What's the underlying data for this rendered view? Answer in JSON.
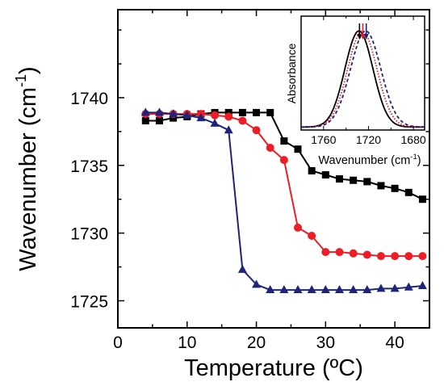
{
  "chart_data": [
    {
      "type": "line",
      "title": "",
      "xlabel": "Temperature (ºC)",
      "ylabel": "Wavenumber (cm",
      "ylabel_sup": "-1",
      "ylabel_close": ")",
      "xlim": [
        0,
        45
      ],
      "ylim": [
        1723,
        1746.5
      ],
      "xticks": [
        0,
        10,
        20,
        30,
        40
      ],
      "yticks": [
        1725,
        1730,
        1735,
        1740
      ],
      "grid": false,
      "legend": "none",
      "series": [
        {
          "color": "#000000",
          "marker": "square",
          "x": [
            4,
            6,
            8,
            10,
            12,
            14,
            16,
            18,
            20,
            22,
            24,
            26,
            28,
            30,
            32,
            34,
            36,
            38,
            40,
            42,
            44
          ],
          "y": [
            1738.3,
            1738.3,
            1738.5,
            1738.6,
            1738.8,
            1738.9,
            1738.9,
            1738.9,
            1738.9,
            1738.9,
            1736.8,
            1736.2,
            1734.6,
            1734.3,
            1734.0,
            1733.9,
            1733.8,
            1733.5,
            1733.3,
            1733.0,
            1732.5
          ]
        },
        {
          "color": "#ee1c24",
          "marker": "circle",
          "x": [
            4,
            6,
            8,
            10,
            12,
            14,
            16,
            18,
            20,
            22,
            24,
            26,
            28,
            30,
            32,
            34,
            36,
            38,
            40,
            42,
            44
          ],
          "y": [
            1738.8,
            1738.8,
            1738.8,
            1738.8,
            1738.8,
            1738.7,
            1738.6,
            1738.3,
            1737.6,
            1736.3,
            1735.4,
            1730.4,
            1729.8,
            1728.6,
            1728.6,
            1728.5,
            1728.4,
            1728.3,
            1728.3,
            1728.3,
            1728.3
          ]
        },
        {
          "color": "#1e2479",
          "marker": "triangle",
          "x": [
            4,
            6,
            8,
            10,
            12,
            14,
            16,
            18,
            20,
            22,
            24,
            26,
            28,
            30,
            32,
            34,
            36,
            38,
            40,
            42,
            44
          ],
          "y": [
            1738.9,
            1738.9,
            1738.8,
            1738.7,
            1738.5,
            1738.1,
            1737.6,
            1727.3,
            1726.2,
            1725.8,
            1725.8,
            1725.8,
            1725.8,
            1725.8,
            1725.8,
            1725.8,
            1725.8,
            1725.9,
            1725.9,
            1726.0,
            1726.1
          ]
        }
      ]
    },
    {
      "type": "line",
      "title": "",
      "xlabel": "Wavenumber (cm",
      "xlabel_sup": "-1",
      "xlabel_close": ")",
      "ylabel": "Absorbance",
      "xlim": [
        1780,
        1670
      ],
      "ylim": [
        0,
        1.15
      ],
      "xticks": [
        1760,
        1720,
        1680
      ],
      "reversed_x": true,
      "legend": "none",
      "arrow_positions": [
        1728,
        1725,
        1722
      ],
      "arrow_colors": [
        "#000000",
        "#ee1c24",
        "#1e2479"
      ],
      "series": [
        {
          "color": "#000000",
          "style": "solid",
          "center": 1728.5,
          "width": 12.5
        },
        {
          "color": "#ee1c24",
          "style": "dotted",
          "center": 1725.5,
          "width": 13.0
        },
        {
          "color": "#1e2479",
          "style": "dashed",
          "center": 1722.5,
          "width": 13.5
        }
      ]
    }
  ]
}
